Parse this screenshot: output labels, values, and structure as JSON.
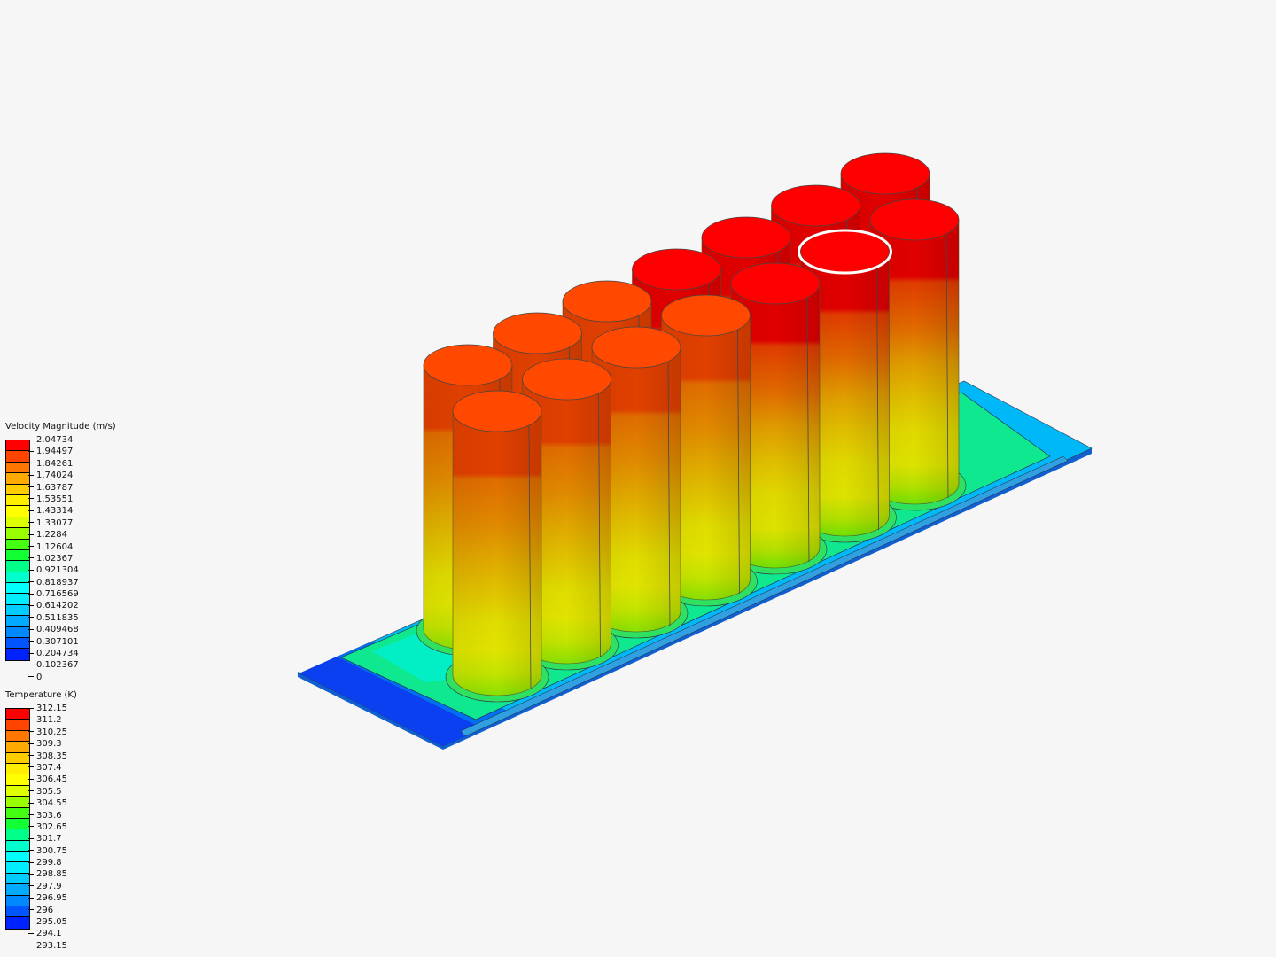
{
  "viewport": {
    "highlighted_cell": "cell-front-5",
    "highlight_color": "#ffffff"
  },
  "legend_colors": [
    "#ff0000",
    "#ff4400",
    "#ff7700",
    "#ffaa00",
    "#ffcc00",
    "#ffee00",
    "#ffff00",
    "#ddff00",
    "#99ff00",
    "#44ff11",
    "#11ff33",
    "#00ff88",
    "#00ffcc",
    "#00ffff",
    "#00eeff",
    "#00ccff",
    "#00aaff",
    "#0088ff",
    "#0055ff",
    "#0022ff"
  ],
  "velocity_legend": {
    "title": "Velocity Magnitude (m/s)",
    "labels": [
      "2.04734",
      "1.94497",
      "1.84261",
      "1.74024",
      "1.63787",
      "1.53551",
      "1.43314",
      "1.33077",
      "1.2284",
      "1.12604",
      "1.02367",
      "0.921304",
      "0.818937",
      "0.716569",
      "0.614202",
      "0.511835",
      "0.409468",
      "0.307101",
      "0.204734",
      "0.102367",
      "0"
    ]
  },
  "temperature_legend": {
    "title": "Temperature (K)",
    "labels": [
      "312.15",
      "311.2",
      "310.25",
      "309.3",
      "308.35",
      "307.4",
      "306.45",
      "305.5",
      "304.55",
      "303.6",
      "302.65",
      "301.7",
      "300.75",
      "299.8",
      "298.85",
      "297.9",
      "296.95",
      "296",
      "295.05",
      "294.1",
      "293.15"
    ]
  }
}
